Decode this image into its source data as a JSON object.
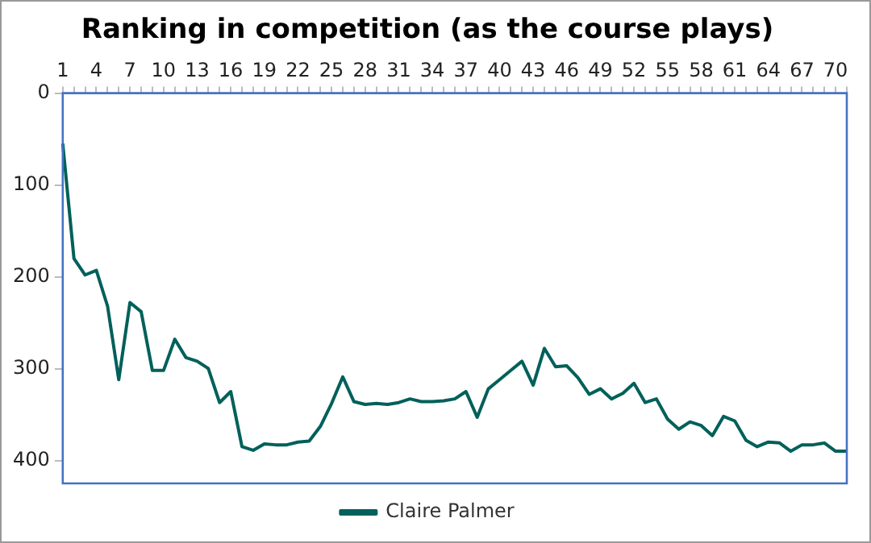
{
  "chart_data": {
    "type": "line",
    "title": "Ranking in competition (as the course plays)",
    "categories": [
      "1",
      null,
      null,
      "4",
      null,
      null,
      "7",
      null,
      null,
      "10",
      null,
      null,
      "13",
      null,
      null,
      "16",
      null,
      null,
      "19",
      null,
      null,
      "22",
      null,
      null,
      "25",
      null,
      null,
      "28",
      null,
      null,
      "31",
      null,
      null,
      "34",
      null,
      null,
      "37",
      null,
      null,
      "40",
      null,
      null,
      "43",
      null,
      null,
      "46",
      null,
      null,
      "49",
      null,
      null,
      "52",
      null,
      null,
      "55",
      null,
      null,
      "58",
      null,
      null,
      "61",
      null,
      null,
      "64",
      null,
      null,
      "67",
      null,
      null,
      "70",
      null
    ],
    "series": [
      {
        "name": "Claire Palmer",
        "color": "#00605a",
        "values": [
          55,
          180,
          198,
          193,
          232,
          312,
          228,
          238,
          302,
          302,
          268,
          288,
          292,
          300,
          337,
          325,
          385,
          389,
          382,
          383,
          383,
          380,
          379,
          363,
          338,
          309,
          336,
          339,
          338,
          339,
          337,
          333,
          336,
          336,
          335,
          333,
          325,
          353,
          322,
          312,
          302,
          292,
          318,
          278,
          298,
          297,
          310,
          328,
          322,
          333,
          327,
          316,
          337,
          333,
          355,
          366,
          358,
          362,
          373,
          352,
          357,
          378,
          385,
          380,
          381,
          390,
          383,
          383,
          381,
          390,
          390
        ]
      }
    ],
    "ylim": [
      425,
      0
    ],
    "yticks": [
      0,
      100,
      200,
      300,
      400
    ],
    "grid": false,
    "legend": "bottom",
    "marker": "none",
    "line_style": "solid"
  }
}
